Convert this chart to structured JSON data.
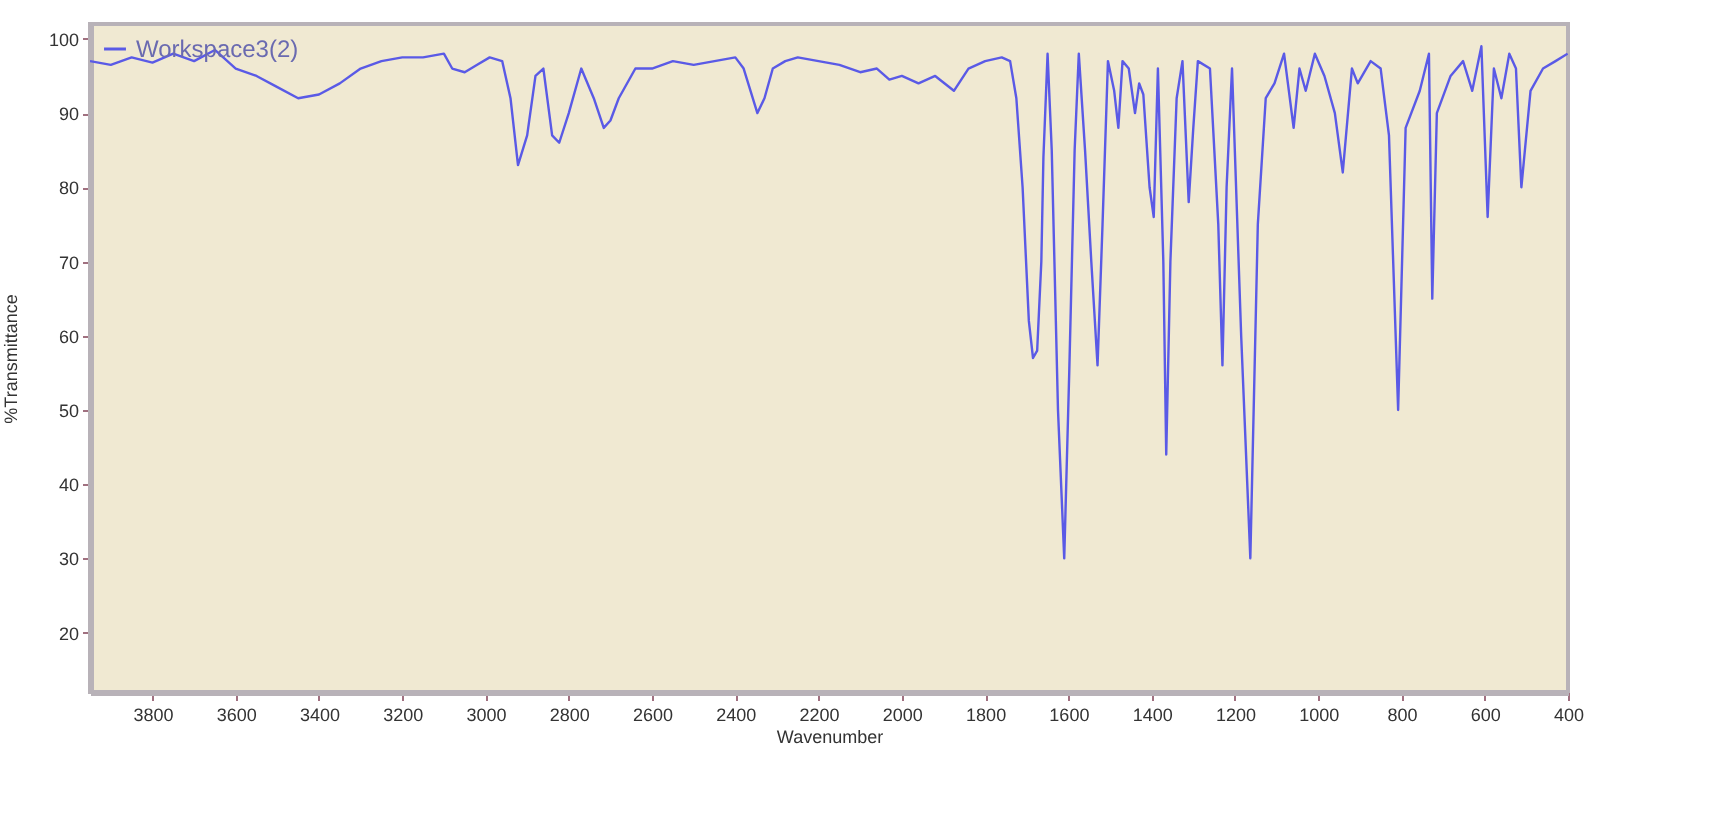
{
  "chart_data": {
    "type": "line",
    "xlabel": "Wavenumber",
    "ylabel": "%Transmittance",
    "xlim": [
      3950,
      400
    ],
    "ylim": [
      12,
      102
    ],
    "xticks": [
      3800,
      3600,
      3400,
      3200,
      3000,
      2800,
      2600,
      2400,
      2200,
      2000,
      1800,
      1600,
      1400,
      1200,
      1000,
      800,
      600,
      400
    ],
    "yticks": [
      20,
      30,
      40,
      50,
      60,
      70,
      80,
      90,
      100
    ],
    "grid": false,
    "legend": "top left",
    "line_style": "solid",
    "series": [
      {
        "name": "Workspace3(2)",
        "color": "#5a5ae6",
        "x": [
          3950,
          3900,
          3850,
          3800,
          3750,
          3700,
          3650,
          3600,
          3550,
          3500,
          3450,
          3400,
          3350,
          3300,
          3250,
          3200,
          3150,
          3100,
          3080,
          3050,
          3020,
          2990,
          2960,
          2940,
          2922,
          2900,
          2880,
          2861,
          2840,
          2823,
          2800,
          2770,
          2740,
          2716,
          2700,
          2680,
          2640,
          2600,
          2550,
          2500,
          2450,
          2400,
          2380,
          2347,
          2330,
          2310,
          2280,
          2250,
          2200,
          2150,
          2100,
          2060,
          2030,
          2000,
          1960,
          1920,
          1875,
          1840,
          1800,
          1760,
          1740,
          1725,
          1710,
          1695,
          1685,
          1675,
          1665,
          1660,
          1650,
          1640,
          1625,
          1610,
          1598,
          1585,
          1575,
          1560,
          1545,
          1530,
          1518,
          1505,
          1490,
          1480,
          1470,
          1455,
          1440,
          1430,
          1420,
          1405,
          1395,
          1385,
          1372,
          1365,
          1355,
          1340,
          1326,
          1311,
          1300,
          1289,
          1260,
          1240,
          1230,
          1220,
          1207,
          1185,
          1163,
          1145,
          1126,
          1105,
          1082,
          1059,
          1045,
          1030,
          1008,
          985,
          960,
          941,
          919,
          905,
          874,
          850,
          830,
          808,
          790,
          756,
          734,
          726,
          715,
          682,
          652,
          630,
          608,
          593,
          578,
          560,
          541,
          525,
          512,
          490,
          460,
          430,
          401
        ],
        "values": [
          97,
          96.5,
          97.5,
          96.8,
          98,
          97,
          98.5,
          96,
          95,
          93.5,
          92,
          92.5,
          94,
          96,
          97,
          97.5,
          97.5,
          98,
          96,
          95.5,
          96.5,
          97.5,
          97,
          92,
          83,
          87,
          95,
          96,
          87,
          86,
          90,
          96,
          92,
          88,
          89,
          92,
          96,
          96,
          97,
          96.5,
          97,
          97.5,
          96,
          90,
          92,
          96,
          97,
          97.5,
          97,
          96.5,
          95.5,
          96,
          94.5,
          95,
          94,
          95,
          93,
          96,
          97,
          97.5,
          97,
          92,
          80,
          62,
          57,
          58,
          70,
          84,
          98,
          85,
          50,
          30,
          55,
          85,
          98,
          85,
          70,
          56,
          75,
          97,
          93,
          88,
          97,
          96,
          90,
          94,
          92.5,
          80,
          76,
          96,
          70,
          44,
          70,
          92,
          97,
          78,
          88,
          97,
          96,
          75,
          56,
          80,
          96,
          60,
          30,
          75,
          92,
          94,
          98,
          88,
          96,
          93,
          98,
          95,
          90,
          82,
          96,
          94,
          97,
          96,
          87,
          50,
          88,
          93,
          98,
          65,
          90,
          95,
          97,
          93,
          99,
          76,
          96,
          92,
          98,
          96,
          80,
          93,
          96,
          97,
          98
        ]
      }
    ]
  }
}
